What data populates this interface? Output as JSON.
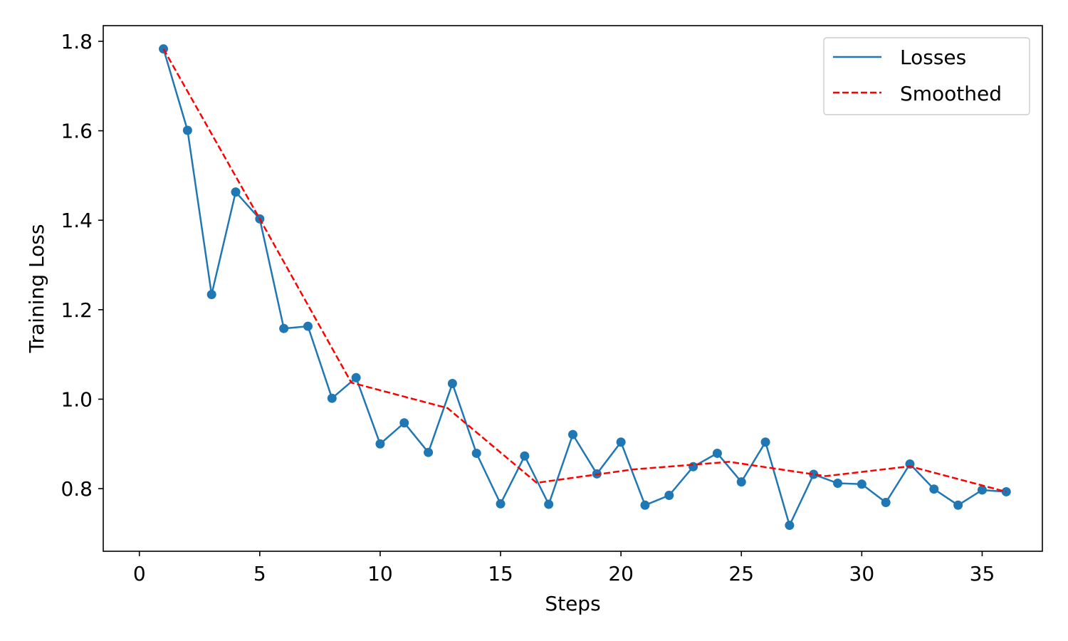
{
  "chart_data": {
    "type": "line",
    "xlabel": "Steps",
    "ylabel": "Training Loss",
    "xlim": [
      -1.5,
      37.5
    ],
    "ylim": [
      0.66,
      1.835
    ],
    "xticks": [
      0,
      5,
      10,
      15,
      20,
      25,
      30,
      35
    ],
    "yticks": [
      0.8,
      1.0,
      1.2,
      1.4,
      1.6,
      1.8
    ],
    "legend_position": "top-right",
    "series": [
      {
        "name": "Losses",
        "color": "#1f77b4",
        "style": "solid",
        "markers": true,
        "x": [
          1,
          2,
          3,
          4,
          5,
          6,
          7,
          8,
          9,
          10,
          11,
          12,
          13,
          14,
          15,
          16,
          17,
          18,
          19,
          20,
          21,
          22,
          23,
          24,
          25,
          26,
          27,
          28,
          29,
          30,
          31,
          32,
          33,
          34,
          35,
          36
        ],
        "y": [
          1.783,
          1.601,
          1.234,
          1.463,
          1.403,
          1.158,
          1.163,
          1.002,
          1.048,
          0.9,
          0.947,
          0.881,
          1.035,
          0.879,
          0.766,
          0.873,
          0.765,
          0.921,
          0.833,
          0.904,
          0.763,
          0.785,
          0.849,
          0.879,
          0.815,
          0.904,
          0.718,
          0.832,
          0.812,
          0.81,
          0.769,
          0.855,
          0.799,
          0.763,
          0.797,
          0.793
        ]
      },
      {
        "name": "Smoothed",
        "color": "#ff0000",
        "style": "dashed",
        "markers": false,
        "x": [
          1,
          5,
          8.8,
          12.8,
          16.5,
          20.5,
          24.5,
          28.5,
          32,
          36
        ],
        "y": [
          1.783,
          1.403,
          1.037,
          0.98,
          0.813,
          0.843,
          0.86,
          0.828,
          0.85,
          0.793
        ]
      }
    ]
  }
}
